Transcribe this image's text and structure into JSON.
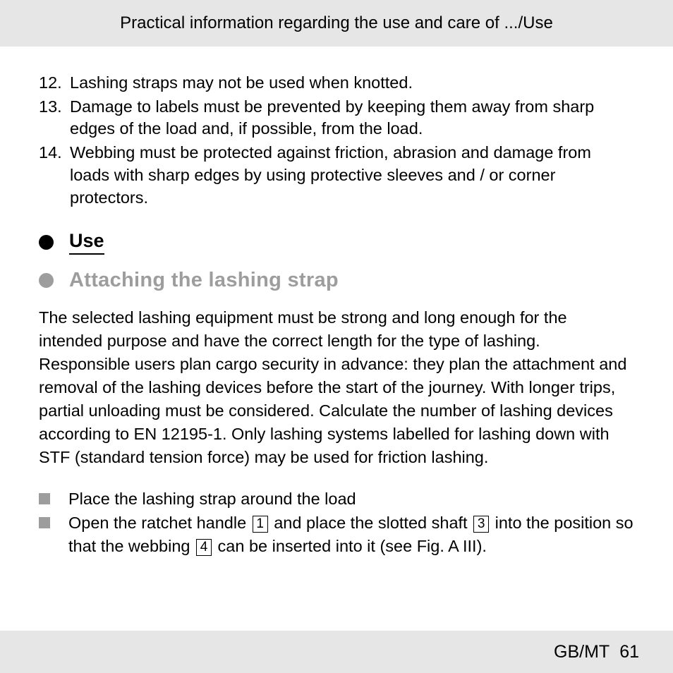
{
  "header": {
    "breadcrumb": "Practical information regarding the use and care of .../Use"
  },
  "numbered": [
    {
      "n": "12.",
      "text": "Lashing straps may not be used when knotted."
    },
    {
      "n": "13.",
      "text": "Damage to labels must be prevented by keeping them away from sharp edges of the load and, if possible, from the load."
    },
    {
      "n": "14.",
      "text": "Webbing must be protected against friction, abrasion and damage from loads with sharp edges by using protective sleeves and / or corner protectors."
    }
  ],
  "sections": {
    "use": "Use",
    "attaching": "Attaching the lashing strap"
  },
  "paragraph": "The selected lashing equipment must be strong and long enough for the intended purpose and have the correct length for the type of lashing. Responsible users plan cargo security in advance: they plan the attachment and removal of the lashing devices before the start of the journey. With longer trips, partial unloading must be considered. Calculate the number of lashing devices according to EN 12195-1. Only lashing systems labelled for lashing down with STF (standard tension force) may be used for friction lashing.",
  "steps": {
    "item1": "Place the lashing strap around the load",
    "item2_a": "Open the ratchet handle ",
    "item2_ref1": "1",
    "item2_b": " and place the slotted shaft ",
    "item2_ref2": "3",
    "item2_c": " into the position so that the webbing ",
    "item2_ref3": "4",
    "item2_d": " can be inserted into it (see Fig. A III)."
  },
  "footer": {
    "region": "GB/MT",
    "page": "61"
  }
}
